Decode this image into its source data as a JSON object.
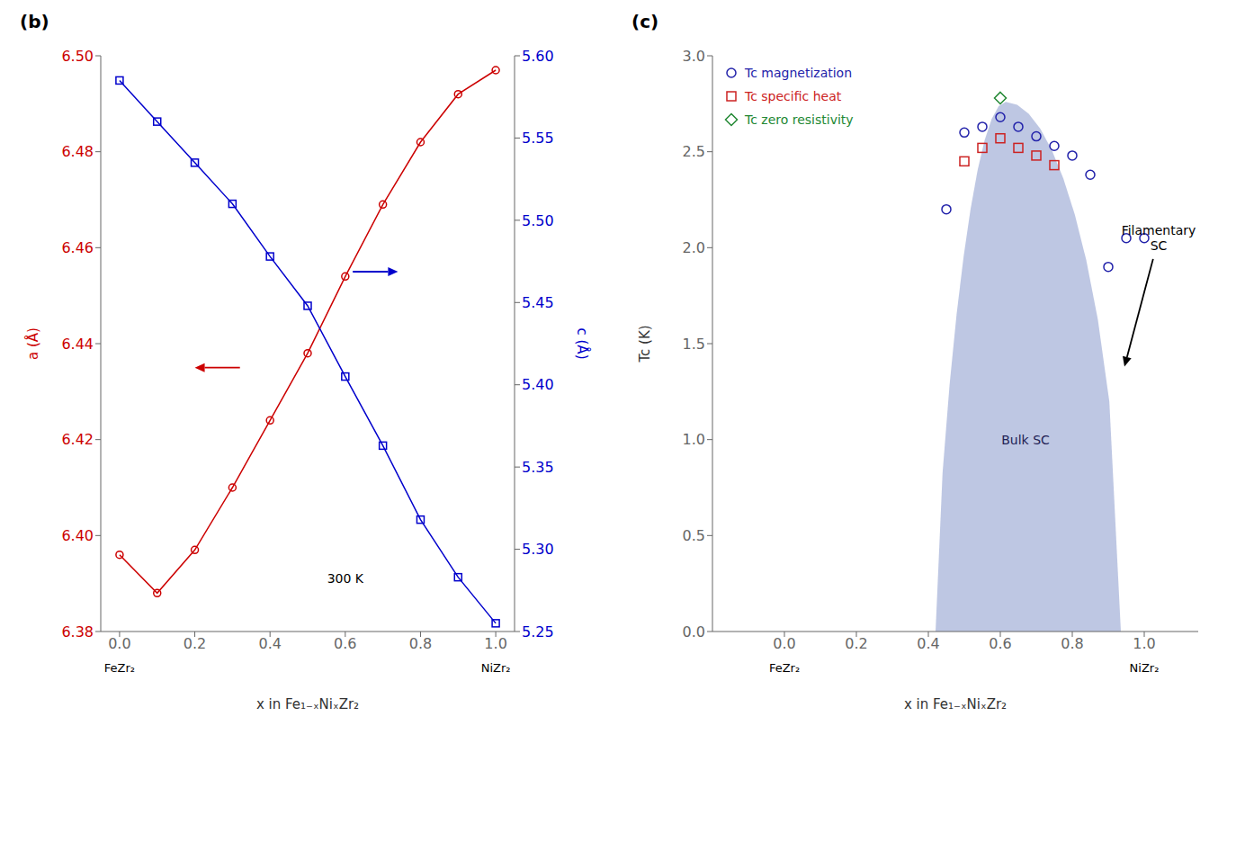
{
  "chart_data": [
    {
      "type": "line",
      "title": "(b)",
      "xlabel": "x in Fe₁₋ₓNiₓZr₂",
      "ylabel": "a (Å)",
      "y2label": "c (Å)",
      "x": [
        0.0,
        0.1,
        0.2,
        0.3,
        0.4,
        0.5,
        0.6,
        0.7,
        0.8,
        0.9,
        1.0
      ],
      "xlim": [
        -0.05,
        1.05
      ],
      "xticks": [
        {
          "value": 0,
          "label": "0.0"
        },
        0.2,
        0.4,
        0.6,
        0.8,
        {
          "value": 1.0,
          "label": "1.0"
        }
      ],
      "ylim": [
        6.38,
        6.5
      ],
      "yticks": [
        6.38,
        {
          "value": 6.4,
          "label": "6.40"
        },
        6.42,
        6.44,
        6.46,
        6.48,
        {
          "value": 6.5,
          "label": "6.50"
        }
      ],
      "y2lim": [
        5.25,
        5.6
      ],
      "y2ticks": [
        5.25,
        {
          "value": 5.3,
          "label": "5.30"
        },
        5.35,
        {
          "value": 5.4,
          "label": "5.40"
        },
        5.45,
        {
          "value": 5.5,
          "label": "5.50"
        },
        5.55,
        {
          "value": 5.6,
          "label": "5.60"
        }
      ],
      "grid": false,
      "series": [
        {
          "color": "#cc0000",
          "marker": "circle",
          "values": [
            6.396,
            6.388,
            6.397,
            6.41,
            6.424,
            6.438,
            6.454,
            6.469,
            6.482,
            6.492,
            6.497
          ]
        },
        {
          "color": "#0000cc",
          "marker": "square",
          "axis": "y2",
          "values": [
            5.585,
            5.56,
            5.535,
            5.51,
            5.478,
            5.448,
            5.405,
            5.363,
            5.318,
            5.283,
            5.255
          ]
        }
      ],
      "annotations": [
        {
          "text": "300 K",
          "x": 0.6,
          "y": 6.391
        },
        {
          "text": "FeZr₂",
          "x": 0.0
        },
        {
          "text": "NiZr₂",
          "x": 1.0
        }
      ],
      "arrows": [
        {
          "x": [
            0.32,
            0.2
          ],
          "y": [
            6.435,
            6.435
          ],
          "color": "#cc0000"
        },
        {
          "x": [
            0.62,
            0.74
          ],
          "y": [
            6.455,
            6.455
          ],
          "color": "#0000cc"
        }
      ]
    },
    {
      "type": "scatter",
      "title": "(c)",
      "xlabel": "x in Fe₁₋ₓNiₓZr₂",
      "ylabel": "Tc (K)",
      "xlim": [
        -0.2,
        1.15
      ],
      "xticks": [
        {
          "value": 0,
          "label": "0.0"
        },
        0.2,
        0.4,
        0.6,
        0.8,
        {
          "value": 1.0,
          "label": "1.0"
        }
      ],
      "ylim": [
        0,
        3.0
      ],
      "yticks": [
        {
          "value": 0,
          "label": "0.0"
        },
        0.5,
        {
          "value": 1.0,
          "label": "1.0"
        },
        1.5,
        {
          "value": 2.0,
          "label": "2.0"
        },
        2.5,
        {
          "value": 3.0,
          "label": "3.0"
        }
      ],
      "grid": false,
      "legend": "upper left",
      "series": [
        {
          "type": "area",
          "color": "#8899cc",
          "x": [
            0.42,
            0.4395,
            0.459,
            0.4785,
            0.498,
            0.5175,
            0.537,
            0.5565,
            0.576,
            0.5955,
            0.615,
            0.615,
            0.647,
            0.679,
            0.711,
            0.743,
            0.775,
            0.807,
            0.839,
            0.871,
            0.903,
            0.935
          ],
          "values": [
            0,
            0.826,
            1.286,
            1.652,
            1.954,
            2.203,
            2.405,
            2.56,
            2.671,
            2.738,
            2.76,
            2.76,
            2.745,
            2.698,
            2.62,
            2.509,
            2.361,
            2.173,
            1.934,
            1.627,
            1.198,
            0
          ]
        },
        {
          "name": "Tc magnetization",
          "type": "scatter",
          "marker": "circle",
          "color": "#2222aa",
          "x": [
            0.45,
            0.5,
            0.55,
            0.6,
            0.65,
            0.7,
            0.75,
            0.8,
            0.85,
            0.9,
            0.95,
            1.0
          ],
          "values": [
            2.2,
            2.6,
            2.63,
            2.68,
            2.63,
            2.58,
            2.53,
            2.48,
            2.38,
            1.9,
            2.05,
            2.05
          ]
        },
        {
          "name": "Tc specific heat",
          "type": "scatter",
          "marker": "square",
          "color": "#cc2222",
          "x": [
            0.5,
            0.55,
            0.6,
            0.65,
            0.7,
            0.75
          ],
          "values": [
            2.45,
            2.52,
            2.57,
            2.52,
            2.48,
            2.43
          ]
        },
        {
          "name": "Tc zero resistivity",
          "type": "scatter",
          "marker": "diamond",
          "color": "#228833",
          "x": [
            0.6
          ],
          "values": [
            2.78
          ]
        }
      ],
      "annotations": [
        {
          "text": "Bulk SC",
          "x": 0.67,
          "y": 1.0,
          "color": "#222255"
        },
        {
          "text": "Filamentary\nSC",
          "x": 1.04,
          "y": 2.05,
          "arrow_x": 0.945,
          "arrow_y": 1.38
        },
        {
          "text": "FeZr₂",
          "x": 0.0
        },
        {
          "text": "NiZr₂",
          "x": 1.0
        }
      ]
    }
  ]
}
